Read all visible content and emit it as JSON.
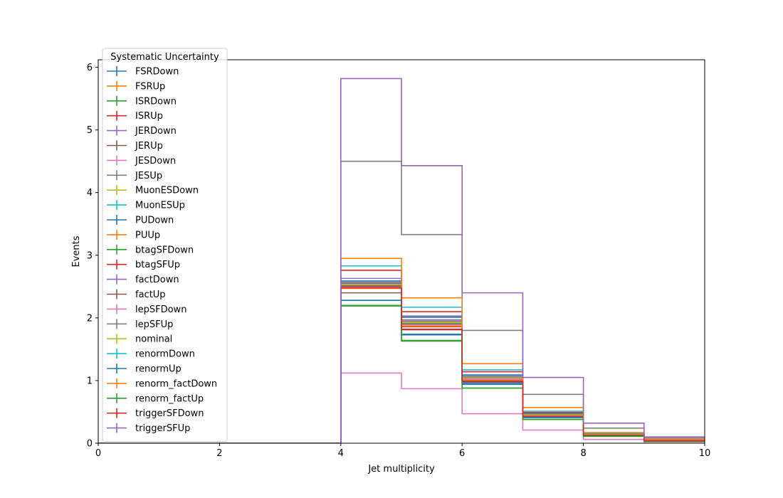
{
  "chart_data": {
    "type": "line",
    "xlabel": "Jet multiplicity",
    "ylabel": "Events",
    "xlim": [
      0,
      10
    ],
    "ylim": [
      0,
      6.12
    ],
    "x_ticks": [
      "0",
      "2",
      "4",
      "6",
      "8",
      "10"
    ],
    "y_ticks": [
      "0",
      "1",
      "2",
      "3",
      "4",
      "5",
      "6"
    ],
    "bin_edges": [
      0,
      1,
      2,
      3,
      4,
      5,
      6,
      7,
      8,
      9,
      10
    ],
    "grid": false,
    "legend": {
      "title": "Systematic Uncertainty",
      "placement": "upper-left"
    },
    "series": [
      {
        "name": "FSRDown",
        "color": "#1f77b4",
        "values": [
          0,
          0,
          0,
          0,
          2.28,
          1.73,
          0.96,
          0.41,
          0.13,
          0.04
        ]
      },
      {
        "name": "FSRUp",
        "color": "#ff7f0e",
        "values": [
          0,
          0,
          0,
          0,
          2.55,
          1.9,
          1.02,
          0.45,
          0.14,
          0.04
        ]
      },
      {
        "name": "ISRDown",
        "color": "#2ca02c",
        "values": [
          0,
          0,
          0,
          0,
          2.52,
          1.92,
          0.98,
          0.43,
          0.13,
          0.04
        ]
      },
      {
        "name": "ISRUp",
        "color": "#d62728",
        "values": [
          0,
          0,
          0,
          0,
          2.5,
          1.86,
          1.0,
          0.44,
          0.13,
          0.04
        ]
      },
      {
        "name": "JERDown",
        "color": "#9467bd",
        "values": [
          0,
          0,
          0,
          0,
          2.63,
          2.03,
          1.08,
          0.46,
          0.14,
          0.05
        ]
      },
      {
        "name": "JERUp",
        "color": "#8c564b",
        "values": [
          0,
          0,
          0,
          0,
          2.4,
          1.81,
          0.98,
          0.42,
          0.13,
          0.04
        ]
      },
      {
        "name": "JESDown",
        "color": "#e377c2",
        "values": [
          0,
          0,
          0,
          0,
          1.12,
          0.87,
          0.47,
          0.21,
          0.06,
          0.02
        ]
      },
      {
        "name": "JESUp",
        "color": "#7f7f7f",
        "values": [
          0,
          0,
          0,
          0,
          4.5,
          3.33,
          1.8,
          0.78,
          0.24,
          0.08
        ]
      },
      {
        "name": "MuonESDown",
        "color": "#bcbd22",
        "values": [
          0,
          0,
          0,
          0,
          2.53,
          1.93,
          1.04,
          0.45,
          0.14,
          0.04
        ]
      },
      {
        "name": "MuonESUp",
        "color": "#17becf",
        "values": [
          0,
          0,
          0,
          0,
          2.54,
          1.94,
          1.05,
          0.45,
          0.14,
          0.04
        ]
      },
      {
        "name": "PUDown",
        "color": "#1f77b4",
        "values": [
          0,
          0,
          0,
          0,
          2.59,
          2.01,
          1.09,
          0.47,
          0.14,
          0.05
        ]
      },
      {
        "name": "PUUp",
        "color": "#ff7f0e",
        "values": [
          0,
          0,
          0,
          0,
          2.47,
          1.87,
          1.01,
          0.44,
          0.13,
          0.04
        ]
      },
      {
        "name": "btagSFDown",
        "color": "#2ca02c",
        "values": [
          0,
          0,
          0,
          0,
          2.2,
          1.63,
          0.88,
          0.38,
          0.11,
          0.03
        ]
      },
      {
        "name": "btagSFUp",
        "color": "#d62728",
        "values": [
          0,
          0,
          0,
          0,
          2.76,
          2.1,
          1.14,
          0.49,
          0.15,
          0.05
        ]
      },
      {
        "name": "factDown",
        "color": "#9467bd",
        "values": [
          0,
          0,
          0,
          0,
          2.55,
          1.95,
          1.05,
          0.46,
          0.14,
          0.04
        ]
      },
      {
        "name": "factUp",
        "color": "#8c564b",
        "values": [
          0,
          0,
          0,
          0,
          2.51,
          1.9,
          1.03,
          0.45,
          0.14,
          0.04
        ]
      },
      {
        "name": "lepSFDown",
        "color": "#e377c2",
        "values": [
          0,
          0,
          0,
          0,
          2.49,
          1.89,
          1.02,
          0.44,
          0.13,
          0.04
        ]
      },
      {
        "name": "lepSFUp",
        "color": "#7f7f7f",
        "values": [
          0,
          0,
          0,
          0,
          2.57,
          1.97,
          1.06,
          0.46,
          0.14,
          0.04
        ]
      },
      {
        "name": "nominal",
        "color": "#bcbd22",
        "values": [
          0,
          0,
          0,
          0,
          2.53,
          1.93,
          1.04,
          0.45,
          0.14,
          0.04
        ]
      },
      {
        "name": "renormDown",
        "color": "#17becf",
        "values": [
          0,
          0,
          0,
          0,
          2.83,
          2.17,
          1.17,
          0.51,
          0.16,
          0.05
        ]
      },
      {
        "name": "renormUp",
        "color": "#1f77b4",
        "values": [
          0,
          0,
          0,
          0,
          2.28,
          1.74,
          0.94,
          0.41,
          0.12,
          0.04
        ]
      },
      {
        "name": "renorm_factDown",
        "color": "#ff7f0e",
        "values": [
          0,
          0,
          0,
          0,
          2.95,
          2.32,
          1.27,
          0.57,
          0.17,
          0.06
        ]
      },
      {
        "name": "renorm_factUp",
        "color": "#2ca02c",
        "values": [
          0,
          0,
          0,
          0,
          2.19,
          1.64,
          0.88,
          0.38,
          0.11,
          0.03
        ]
      },
      {
        "name": "triggerSFDown",
        "color": "#d62728",
        "values": [
          0,
          0,
          0,
          0,
          2.48,
          1.82,
          0.99,
          0.43,
          0.13,
          0.04
        ]
      },
      {
        "name": "triggerSFUp",
        "color": "#9467bd",
        "values": [
          0,
          0,
          0,
          0,
          5.82,
          4.43,
          2.4,
          1.05,
          0.32,
          0.1
        ]
      }
    ]
  }
}
